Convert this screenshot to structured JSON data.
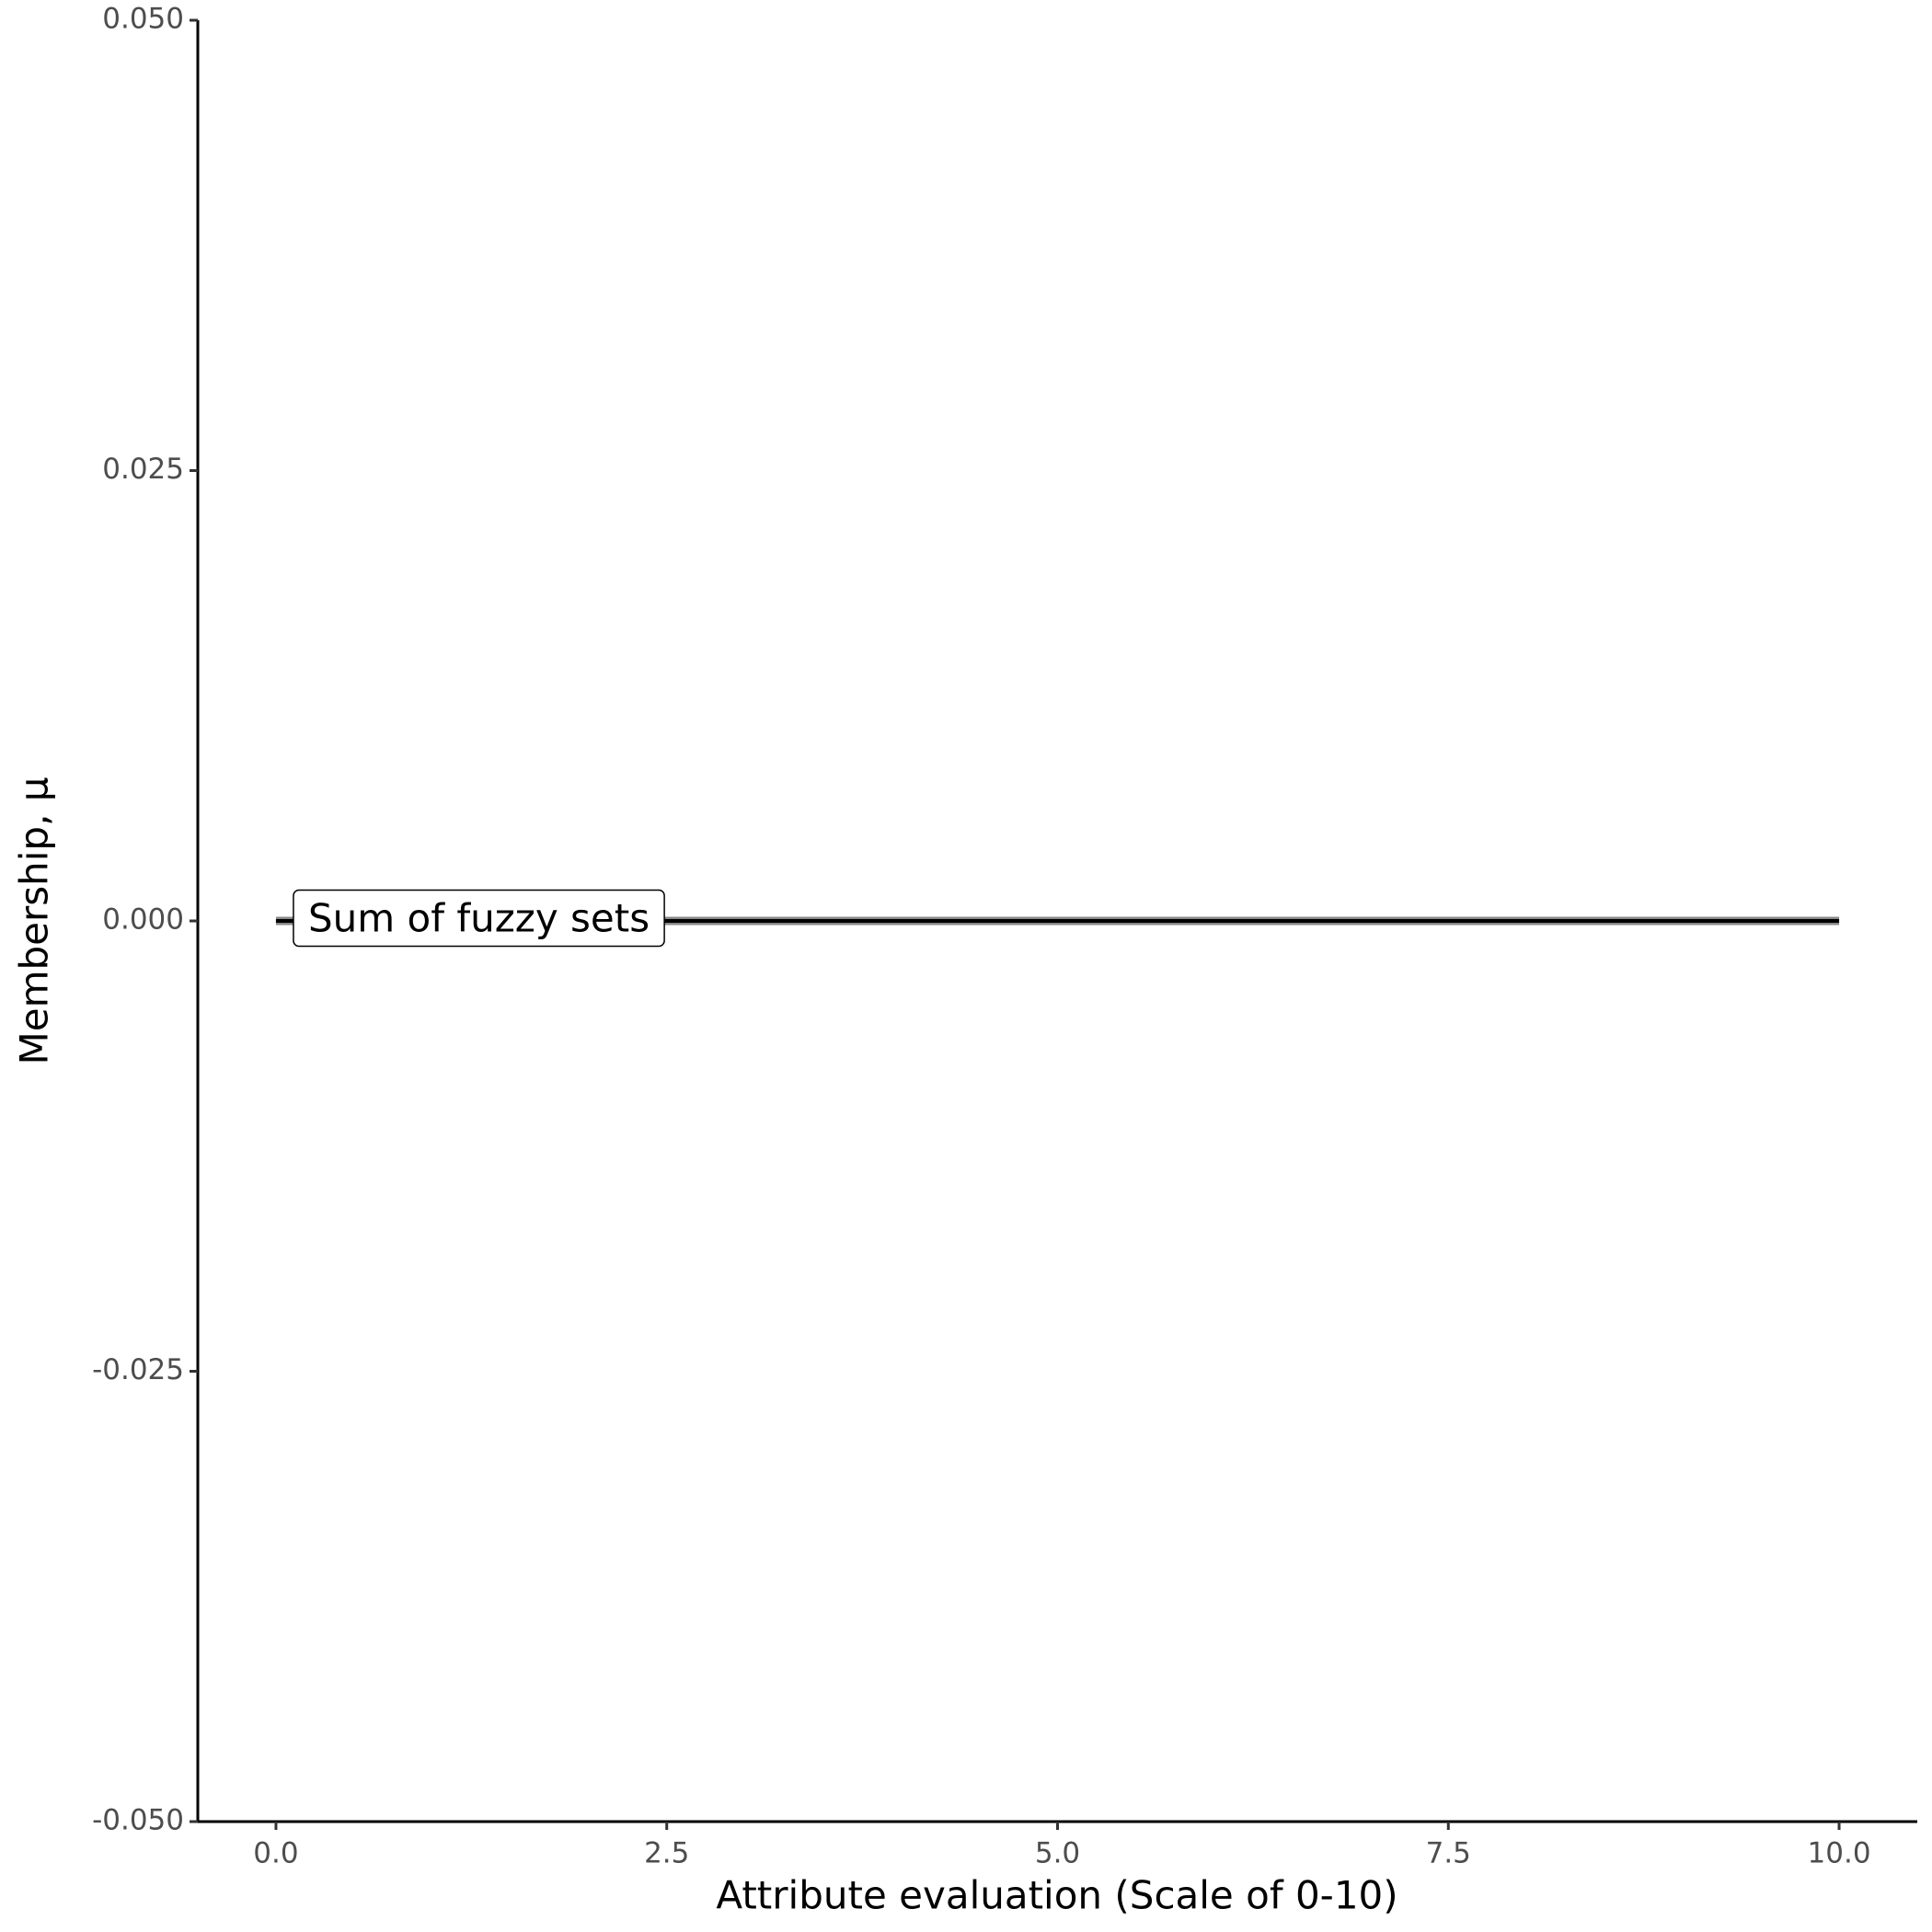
{
  "chart_data": {
    "type": "line",
    "x_label": "Attribute evaluation (Scale of 0-10)",
    "y_label": "Membership, μ",
    "annotation": "Sum of fuzzy sets",
    "x": [
      0,
      10
    ],
    "series": [
      {
        "color": "#888888",
        "values": [
          0,
          0
        ]
      },
      {
        "color": "#000000",
        "values": [
          0,
          0
        ]
      }
    ],
    "xlim": [
      -0.5,
      10.5
    ],
    "xticks": [
      {
        "value": 0,
        "label": "0.0"
      },
      {
        "value": 2.5,
        "label": "2.5"
      },
      {
        "value": 5,
        "label": "5.0"
      },
      {
        "value": 7.5,
        "label": "7.5"
      },
      {
        "value": 10,
        "label": "10.0"
      }
    ],
    "ylim": [
      -0.05,
      0.05
    ],
    "yticks": [
      {
        "value": -0.05,
        "label": "-0.050"
      },
      {
        "value": -0.025,
        "label": "-0.025"
      },
      {
        "value": 0,
        "label": "0.000"
      },
      {
        "value": 0.025,
        "label": "0.025"
      },
      {
        "value": 0.05,
        "label": "0.050"
      }
    ],
    "grid": false
  }
}
